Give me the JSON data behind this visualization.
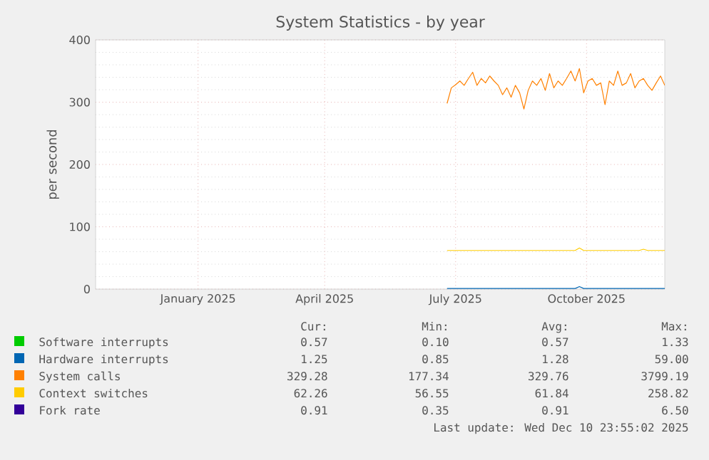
{
  "chart_data": {
    "type": "line",
    "title": "System Statistics - by year",
    "ylabel": "per second",
    "x": [
      "2025-07-10",
      "2025-07-13",
      "2025-07-16",
      "2025-07-19",
      "2025-07-22",
      "2025-07-25",
      "2025-07-28",
      "2025-07-31",
      "2025-08-03",
      "2025-08-06",
      "2025-08-09",
      "2025-08-12",
      "2025-08-15",
      "2025-08-18",
      "2025-08-21",
      "2025-08-24",
      "2025-08-27",
      "2025-08-30",
      "2025-09-02",
      "2025-09-05",
      "2025-09-08",
      "2025-09-11",
      "2025-09-14",
      "2025-09-17",
      "2025-09-20",
      "2025-09-23",
      "2025-09-26",
      "2025-09-29",
      "2025-10-02",
      "2025-10-05",
      "2025-10-08",
      "2025-10-11",
      "2025-10-14",
      "2025-10-17",
      "2025-10-20",
      "2025-10-23",
      "2025-10-26",
      "2025-10-29",
      "2025-11-01",
      "2025-11-04",
      "2025-11-07",
      "2025-11-10",
      "2025-11-13",
      "2025-11-16",
      "2025-11-19",
      "2025-11-22",
      "2025-11-25",
      "2025-11-28",
      "2025-12-01",
      "2025-12-04",
      "2025-12-07",
      "2025-12-10"
    ],
    "series": [
      {
        "name": "Software interrupts",
        "color": "#00cc00",
        "values": [
          null,
          null,
          null,
          null,
          null,
          null,
          null,
          null,
          null,
          null,
          null,
          null,
          null,
          null,
          null,
          null,
          null,
          null,
          null,
          null,
          null,
          null,
          null,
          null,
          null,
          null,
          null,
          null,
          null,
          null,
          null,
          null,
          null,
          null,
          null,
          null,
          null,
          null,
          null,
          null,
          null,
          null,
          null,
          null,
          null,
          null,
          null,
          null,
          null,
          null,
          null,
          null
        ]
      },
      {
        "name": "Hardware interrupts",
        "color": "#0066b3",
        "values": [
          1,
          1,
          1,
          1,
          1,
          1,
          1,
          1,
          1,
          1,
          1,
          1,
          1,
          1,
          1,
          1,
          1,
          1,
          1,
          1,
          1,
          1,
          1,
          1,
          1,
          1,
          1,
          1,
          1,
          1,
          1,
          4,
          1,
          1,
          1,
          1,
          1,
          1,
          1,
          1,
          1,
          1,
          1,
          1,
          1,
          1,
          1,
          1,
          1,
          1,
          1,
          1
        ]
      },
      {
        "name": "System calls",
        "color": "#ff8000",
        "values": [
          298,
          323,
          328,
          334,
          327,
          338,
          348,
          327,
          338,
          331,
          342,
          334,
          327,
          312,
          323,
          308,
          327,
          315,
          289,
          319,
          334,
          327,
          338,
          319,
          346,
          323,
          334,
          327,
          338,
          350,
          334,
          354,
          315,
          334,
          338,
          327,
          331,
          296,
          334,
          327,
          350,
          327,
          331,
          346,
          323,
          334,
          338,
          327,
          319,
          331,
          342,
          327
        ]
      },
      {
        "name": "Context switches",
        "color": "#ffcc00",
        "values": [
          62,
          62,
          62,
          62,
          62,
          62,
          62,
          62,
          62,
          62,
          62,
          62,
          62,
          62,
          62,
          62,
          62,
          62,
          62,
          62,
          62,
          62,
          62,
          62,
          62,
          62,
          62,
          62,
          62,
          62,
          62,
          66,
          62,
          62,
          62,
          62,
          62,
          62,
          62,
          62,
          62,
          62,
          62,
          62,
          62,
          62,
          64,
          62,
          62,
          62,
          62,
          62
        ]
      },
      {
        "name": "Fork rate",
        "color": "#330099",
        "values": [
          null,
          null,
          null,
          null,
          null,
          null,
          null,
          null,
          null,
          null,
          null,
          null,
          null,
          null,
          null,
          null,
          null,
          null,
          null,
          null,
          null,
          null,
          null,
          null,
          null,
          null,
          null,
          null,
          null,
          null,
          null,
          null,
          null,
          null,
          null,
          null,
          null,
          null,
          null,
          null,
          null,
          null,
          null,
          null,
          null,
          null,
          null,
          null,
          null,
          null,
          null,
          null
        ]
      }
    ],
    "xlim": [
      "2024-11-05",
      "2025-12-10"
    ],
    "xticks": [
      {
        "value": "2025-01-16",
        "label": "January 2025"
      },
      {
        "value": "2025-04-15",
        "label": "April 2025"
      },
      {
        "value": "2025-07-16",
        "label": "July 2025"
      },
      {
        "value": "2025-10-16",
        "label": "October 2025"
      }
    ],
    "ylim": [
      0,
      400
    ],
    "yticks": [
      0,
      100,
      200,
      300,
      400
    ],
    "grid": true,
    "legend": "bottom",
    "marker": "none",
    "line_style": "solid",
    "annotations": [
      "Cur:",
      "Min:",
      "Avg:",
      "Max:",
      "0.57",
      "0.10",
      "0.57",
      "1.33",
      "1.25",
      "0.85",
      "1.28",
      "59.00",
      "329.28",
      "177.34",
      "329.76",
      "3799.19",
      "62.26",
      "56.55",
      "61.84",
      "258.82",
      "0.91",
      "0.35",
      "0.91",
      "6.50",
      "Last update: Wed Dec 10 23:55:02 2025"
    ]
  }
}
